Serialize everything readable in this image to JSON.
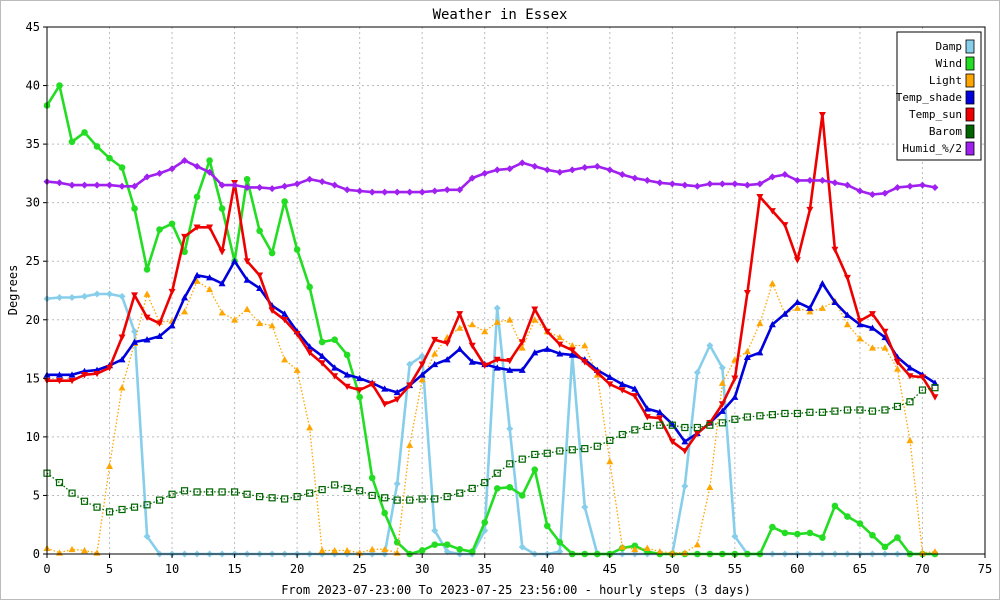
{
  "chart_data": {
    "type": "line",
    "title": "Weather in Essex",
    "xlabel": "From 2023-07-23:00 To 2023-07-25 23:56:00 - hourly steps (3 days)",
    "ylabel": "Degrees",
    "xlim": [
      0,
      75
    ],
    "ylim": [
      0,
      45
    ],
    "x_ticks": [
      0,
      5,
      10,
      15,
      20,
      25,
      30,
      35,
      40,
      45,
      50,
      55,
      60,
      65,
      70,
      75
    ],
    "y_ticks": [
      0,
      5,
      10,
      15,
      20,
      25,
      30,
      35,
      40,
      45
    ],
    "grid": true,
    "legend_position": "top-right",
    "x": [
      0,
      1,
      2,
      3,
      4,
      5,
      6,
      7,
      8,
      9,
      10,
      11,
      12,
      13,
      14,
      15,
      16,
      17,
      18,
      19,
      20,
      21,
      22,
      23,
      24,
      25,
      26,
      27,
      28,
      29,
      30,
      31,
      32,
      33,
      34,
      35,
      36,
      37,
      38,
      39,
      40,
      41,
      42,
      43,
      44,
      45,
      46,
      47,
      48,
      49,
      50,
      51,
      52,
      53,
      54,
      55,
      56,
      57,
      58,
      59,
      60,
      61,
      62,
      63,
      64,
      65,
      66,
      67,
      68,
      69,
      70,
      71
    ],
    "series": [
      {
        "name": "Damp",
        "color": "#87ceeb",
        "marker": "diamond",
        "line": "solid",
        "values": [
          21.8,
          21.9,
          21.9,
          22.0,
          22.2,
          22.2,
          22.0,
          19.0,
          1.5,
          0,
          0,
          0,
          0,
          0,
          0,
          0,
          0,
          0,
          0,
          0,
          0,
          0,
          0,
          0,
          0,
          0,
          0,
          0,
          6.0,
          16.2,
          16.9,
          2.0,
          0.2,
          0,
          0,
          2.0,
          21.0,
          10.7,
          0.6,
          0,
          0,
          0.2,
          17.0,
          4.0,
          0,
          0,
          0,
          0,
          0,
          0,
          0,
          5.8,
          15.5,
          17.8,
          15.9,
          1.5,
          0,
          0,
          0,
          0,
          0,
          0,
          0,
          0,
          0,
          0,
          0,
          0,
          0,
          0,
          0,
          0
        ]
      },
      {
        "name": "Wind",
        "color": "#22dd22",
        "marker": "circle",
        "line": "solid",
        "values": [
          38.3,
          40.0,
          35.2,
          36.0,
          34.8,
          33.8,
          33.0,
          29.5,
          24.3,
          27.7,
          28.2,
          25.8,
          30.5,
          33.6,
          29.5,
          25.0,
          32.0,
          27.6,
          25.7,
          30.1,
          26.0,
          22.8,
          18.1,
          18.3,
          17.0,
          13.4,
          6.5,
          3.5,
          1.0,
          0,
          0.3,
          0.8,
          0.8,
          0.4,
          0.2,
          2.7,
          5.6,
          5.7,
          5.0,
          7.2,
          2.4,
          1.0,
          0,
          0,
          0,
          0,
          0.5,
          0.7,
          0.2,
          0,
          0,
          0,
          0,
          0,
          0,
          0,
          0,
          0,
          2.3,
          1.8,
          1.7,
          1.8,
          1.4,
          4.1,
          3.2,
          2.6,
          1.6,
          0.6,
          1.4,
          0,
          0,
          0
        ]
      },
      {
        "name": "Light",
        "color": "#ffa500",
        "marker": "triangle",
        "line": "dotted",
        "values": [
          0.5,
          0.1,
          0.4,
          0.3,
          0.1,
          7.5,
          14.2,
          18.0,
          22.2,
          19.8,
          19.9,
          20.7,
          23.3,
          22.6,
          20.6,
          20.0,
          20.9,
          19.7,
          19.5,
          16.6,
          15.7,
          10.8,
          0.3,
          0.3,
          0.3,
          0.1,
          0.4,
          0.4,
          0.1,
          9.3,
          14.9,
          17.1,
          18.5,
          19.3,
          19.6,
          19.0,
          19.8,
          20.0,
          17.6,
          20.0,
          19.0,
          18.5,
          17.8,
          17.8,
          15.3,
          7.9,
          0.6,
          0.4,
          0.5,
          0.2,
          0.1,
          0.1,
          0.8,
          5.7,
          14.6,
          16.6,
          17.3,
          19.7,
          23.1,
          20.5,
          21.0,
          20.7,
          21.0,
          21.6,
          19.6,
          18.4,
          17.6,
          17.6,
          15.8,
          9.7,
          0.1,
          0.2
        ]
      },
      {
        "name": "Temp_shade",
        "color": "#0000dd",
        "marker": "triangle",
        "line": "solid",
        "values": [
          15.3,
          15.3,
          15.3,
          15.6,
          15.7,
          16.1,
          16.6,
          18.1,
          18.3,
          18.6,
          19.5,
          21.9,
          23.8,
          23.6,
          23.1,
          25.0,
          23.4,
          22.7,
          21.2,
          20.5,
          19.0,
          17.7,
          16.9,
          15.9,
          15.3,
          15.0,
          14.6,
          14.1,
          13.8,
          14.4,
          15.3,
          16.2,
          16.6,
          17.5,
          16.4,
          16.2,
          15.9,
          15.7,
          15.7,
          17.2,
          17.5,
          17.1,
          17.0,
          16.6,
          15.7,
          15.1,
          14.5,
          14.1,
          12.4,
          12.1,
          11.1,
          9.6,
          10.3,
          11.2,
          12.2,
          13.4,
          16.8,
          17.2,
          19.6,
          20.5,
          21.5,
          21.0,
          23.1,
          21.5,
          20.4,
          19.6,
          19.3,
          18.5,
          16.8,
          15.9,
          15.3,
          14.6
        ]
      },
      {
        "name": "Temp_sun",
        "color": "#ee0000",
        "marker": "triangle-down",
        "line": "solid",
        "values": [
          14.8,
          14.8,
          14.8,
          15.3,
          15.4,
          15.9,
          18.5,
          22.1,
          20.2,
          19.7,
          22.4,
          27.1,
          27.9,
          27.9,
          25.8,
          31.7,
          25.0,
          23.8,
          20.8,
          20.0,
          18.8,
          17.2,
          16.3,
          15.2,
          14.3,
          14.0,
          14.5,
          12.8,
          13.2,
          14.4,
          16.2,
          18.3,
          18.0,
          20.5,
          17.8,
          16.1,
          16.6,
          16.5,
          18.1,
          20.9,
          19.0,
          17.9,
          17.4,
          16.4,
          15.5,
          14.5,
          14.0,
          13.5,
          11.7,
          11.6,
          9.6,
          8.8,
          10.3,
          11.2,
          12.8,
          15.0,
          22.3,
          30.5,
          29.3,
          28.1,
          25.1,
          29.4,
          37.5,
          26.0,
          23.6,
          19.9,
          20.5,
          19.0,
          16.4,
          15.2,
          15.1,
          13.4
        ]
      },
      {
        "name": "Barom",
        "color": "#006400",
        "marker": "square-open",
        "line": "dotted",
        "values": [
          6.9,
          6.1,
          5.2,
          4.5,
          4.0,
          3.6,
          3.8,
          4.0,
          4.2,
          4.6,
          5.1,
          5.4,
          5.3,
          5.3,
          5.3,
          5.3,
          5.1,
          4.9,
          4.8,
          4.7,
          4.9,
          5.2,
          5.5,
          5.9,
          5.6,
          5.4,
          5.0,
          4.8,
          4.6,
          4.6,
          4.7,
          4.7,
          4.9,
          5.2,
          5.6,
          6.1,
          6.9,
          7.7,
          8.1,
          8.5,
          8.6,
          8.8,
          8.9,
          9.0,
          9.2,
          9.7,
          10.2,
          10.6,
          10.9,
          11.0,
          11.0,
          10.8,
          10.8,
          11.0,
          11.2,
          11.5,
          11.7,
          11.8,
          11.9,
          12.0,
          12.0,
          12.1,
          12.1,
          12.2,
          12.3,
          12.3,
          12.2,
          12.3,
          12.6,
          13.0,
          14.0,
          14.2
        ]
      },
      {
        "name": "Humid_%/2",
        "color": "#a020f0",
        "marker": "diamond",
        "line": "solid",
        "values": [
          31.8,
          31.7,
          31.5,
          31.5,
          31.5,
          31.5,
          31.4,
          31.4,
          32.2,
          32.5,
          32.9,
          33.6,
          33.1,
          32.6,
          31.5,
          31.5,
          31.3,
          31.3,
          31.2,
          31.4,
          31.6,
          32.0,
          31.8,
          31.5,
          31.1,
          31.0,
          30.9,
          30.9,
          30.9,
          30.9,
          30.9,
          31.0,
          31.1,
          31.1,
          32.1,
          32.5,
          32.8,
          32.9,
          33.4,
          33.1,
          32.8,
          32.6,
          32.8,
          33.0,
          33.1,
          32.8,
          32.4,
          32.1,
          31.9,
          31.7,
          31.6,
          31.5,
          31.4,
          31.6,
          31.6,
          31.6,
          31.5,
          31.6,
          32.2,
          32.4,
          31.9,
          31.9,
          31.9,
          31.7,
          31.5,
          31.0,
          30.7,
          30.8,
          31.3,
          31.4,
          31.5,
          31.3
        ]
      }
    ]
  }
}
